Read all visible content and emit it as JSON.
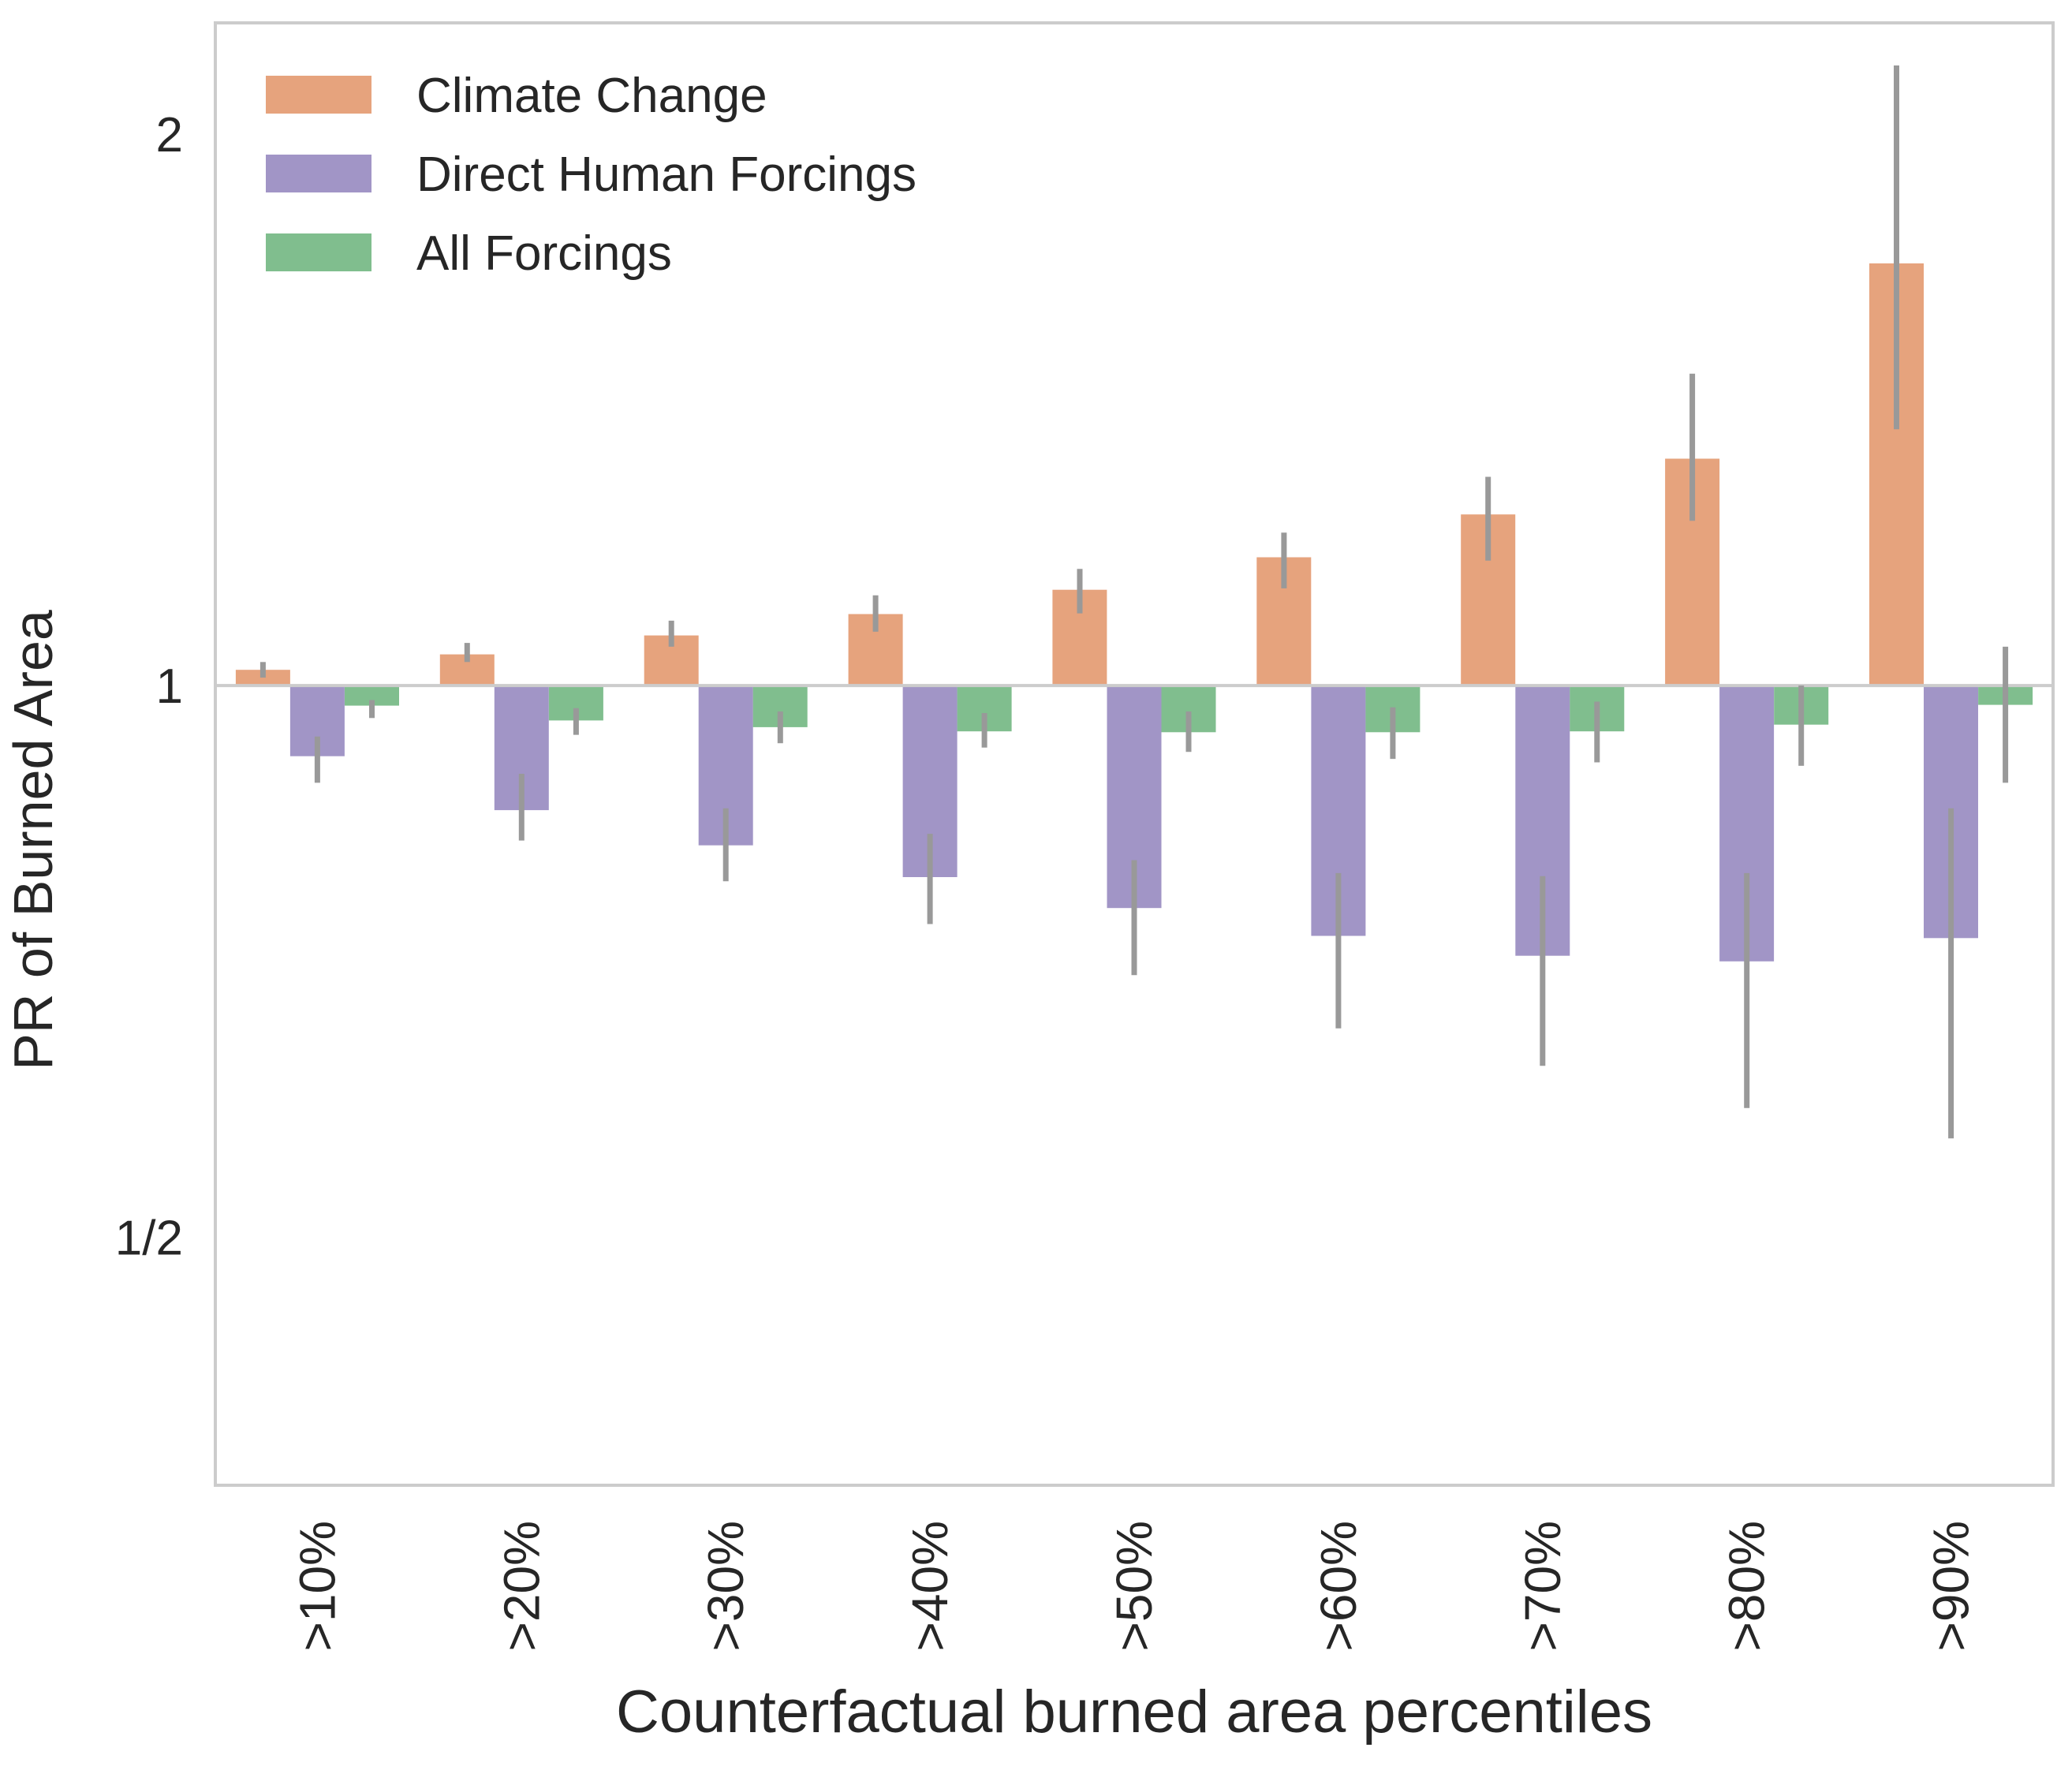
{
  "chart_data": {
    "type": "bar",
    "title": "",
    "xlabel": "Counterfactual burned area percentiles",
    "ylabel": "PR of Burned Area",
    "yscale": "log2",
    "ylim": [
      0.366,
      2.3
    ],
    "baseline": 1,
    "yticks": [
      {
        "value": 0.5,
        "label": "1/2"
      },
      {
        "value": 1,
        "label": "1"
      },
      {
        "value": 2,
        "label": "2"
      }
    ],
    "categories": [
      ">10%",
      ">20%",
      ">30%",
      ">40%",
      ">50%",
      ">60%",
      ">70%",
      ">80%",
      ">90%"
    ],
    "grid": false,
    "legend_position": "top-left",
    "series": [
      {
        "name": "Climate Change",
        "color": "#dd8452",
        "values": [
          1.02,
          1.04,
          1.065,
          1.094,
          1.128,
          1.175,
          1.24,
          1.33,
          1.7
        ],
        "ci_low": [
          1.01,
          1.03,
          1.05,
          1.07,
          1.095,
          1.13,
          1.17,
          1.23,
          1.38
        ],
        "ci_high": [
          1.03,
          1.055,
          1.085,
          1.12,
          1.158,
          1.212,
          1.3,
          1.48,
          2.18
        ]
      },
      {
        "name": "Direct Human Forcings",
        "color": "#8172b3",
        "values": [
          0.915,
          0.855,
          0.818,
          0.786,
          0.756,
          0.73,
          0.712,
          0.707,
          0.728
        ],
        "ci_low": [
          0.885,
          0.823,
          0.782,
          0.741,
          0.695,
          0.65,
          0.62,
          0.588,
          0.566
        ],
        "ci_high": [
          0.938,
          0.895,
          0.857,
          0.83,
          0.803,
          0.79,
          0.787,
          0.79,
          0.857
        ]
      },
      {
        "name": "All Forcings",
        "color": "#55a868",
        "values": [
          0.975,
          0.957,
          0.949,
          0.944,
          0.943,
          0.943,
          0.944,
          0.952,
          0.976
        ],
        "ci_low": [
          0.96,
          0.94,
          0.93,
          0.925,
          0.92,
          0.912,
          0.908,
          0.904,
          0.885
        ],
        "ci_high": [
          0.982,
          0.972,
          0.968,
          0.966,
          0.968,
          0.973,
          0.98,
          1.0,
          1.05
        ]
      }
    ]
  }
}
